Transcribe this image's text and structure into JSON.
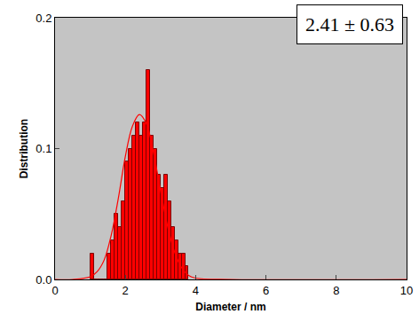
{
  "chart_data": {
    "type": "histogram",
    "x_label": "Diameter / nm",
    "y_label": "Distribution",
    "annotations": [
      "2.41 ± 0.63"
    ],
    "bins": [
      1.0,
      1.1,
      1.2,
      1.3,
      1.4,
      1.5,
      1.6,
      1.7,
      1.8,
      1.9,
      2.0,
      2.1,
      2.2,
      2.3,
      2.4,
      2.5,
      2.6,
      2.7,
      2.8,
      2.9,
      3.0,
      3.1,
      3.2,
      3.3,
      3.4,
      3.5,
      3.6,
      3.7,
      3.8
    ],
    "values": [
      0.02,
      0,
      0,
      0,
      0,
      0.02,
      0.03,
      0.05,
      0.04,
      0.06,
      0.09,
      0.1,
      0.11,
      0.12,
      0.11,
      0.12,
      0.16,
      0.11,
      0.1,
      0.08,
      0.07,
      0.08,
      0.06,
      0.04,
      0.03,
      0.02,
      0.02,
      0.01
    ],
    "color": "#ff0000",
    "fit": {
      "type": "line",
      "color": "#ff0000",
      "line_style": "solid",
      "x": [
        0,
        0.5,
        1.0,
        1.2,
        1.4,
        1.6,
        1.8,
        2.0,
        2.2,
        2.4,
        2.6,
        2.8,
        3.0,
        3.2,
        3.4,
        3.6,
        3.8,
        4.0,
        5.0,
        10
      ],
      "values": [
        0,
        0,
        0.002,
        0.006,
        0.015,
        0.034,
        0.062,
        0.094,
        0.117,
        0.126,
        0.119,
        0.097,
        0.068,
        0.041,
        0.021,
        0.009,
        0.003,
        0.001,
        0,
        0
      ]
    },
    "xlim": [
      0,
      10
    ],
    "xticks": [
      0,
      2,
      4,
      6,
      8,
      10
    ],
    "ylim": [
      0,
      0.2
    ],
    "yticks": [
      {
        "value": 0,
        "label": "0.0"
      },
      {
        "value": 0.1,
        "label": "0.1"
      },
      {
        "value": 0.2,
        "label": "0.2"
      }
    ],
    "grid": false
  }
}
